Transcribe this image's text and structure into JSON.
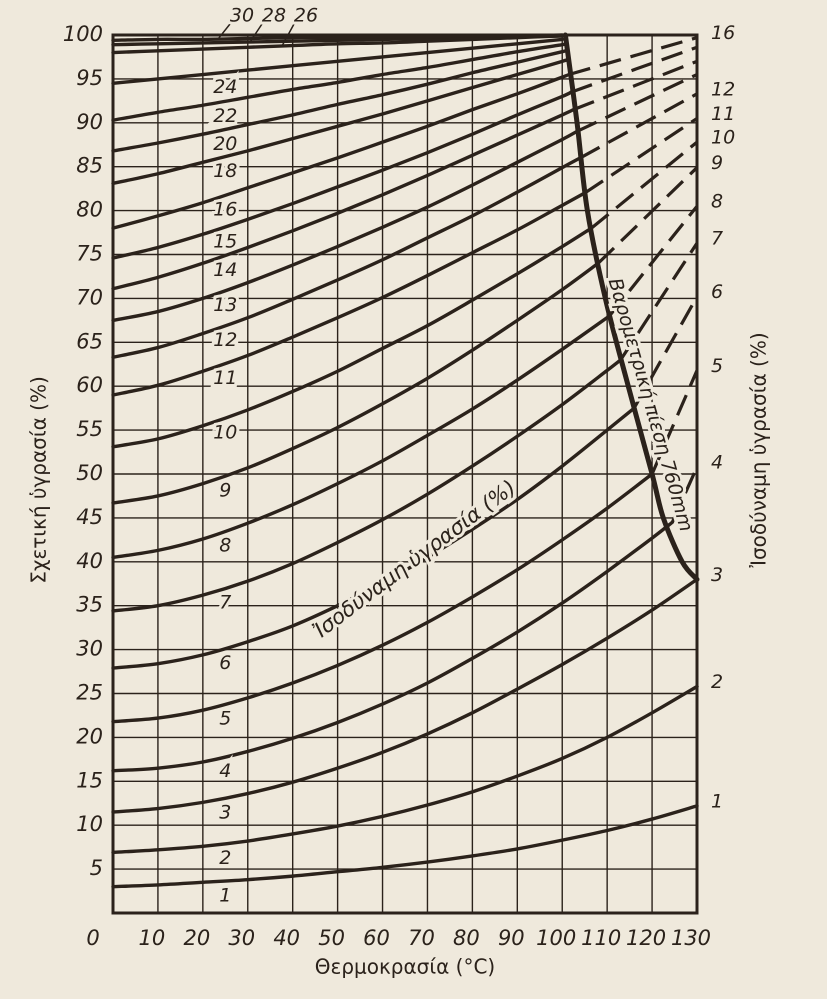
{
  "chart_data": {
    "type": "line",
    "xlabel": "Θερμοκρασία (°C)",
    "ylabel": "Σχετική ὑγρασία (%)",
    "y2label": "Ἰσοδύναμη ὑγρασία (%)",
    "annotation": "Ἰσοδύναμη ὑγρασία (%)",
    "xlim": [
      0,
      130
    ],
    "xticks": [
      0,
      10,
      20,
      30,
      40,
      50,
      60,
      70,
      80,
      90,
      100,
      110,
      120,
      130
    ],
    "ylim": [
      0,
      100
    ],
    "yticks": [
      5,
      10,
      15,
      20,
      25,
      30,
      35,
      40,
      45,
      50,
      55,
      60,
      65,
      70,
      75,
      80,
      85,
      90,
      95,
      100
    ],
    "grid": true,
    "color": "#2b221b",
    "series": [
      {
        "name": "1",
        "x": [
          0,
          10,
          20,
          30,
          40,
          50,
          60,
          70,
          80,
          90,
          100,
          110,
          120,
          130
        ],
        "values": [
          3.0,
          3.2,
          3.5,
          3.8,
          4.2,
          4.7,
          5.2,
          5.8,
          6.5,
          7.3,
          8.3,
          9.4,
          10.7,
          12.2
        ]
      },
      {
        "name": "2",
        "x": [
          0,
          10,
          20,
          30,
          40,
          50,
          60,
          70,
          80,
          90,
          100,
          110,
          120,
          130
        ],
        "values": [
          6.9,
          7.2,
          7.6,
          8.2,
          9.0,
          9.9,
          11.0,
          12.3,
          13.8,
          15.6,
          17.6,
          20.0,
          22.8,
          25.8
        ]
      },
      {
        "name": "3",
        "x": [
          0,
          10,
          20,
          30,
          40,
          50,
          60,
          70,
          80,
          90,
          100,
          110,
          120,
          130
        ],
        "values": [
          11.5,
          11.9,
          12.6,
          13.6,
          14.9,
          16.5,
          18.3,
          20.4,
          22.8,
          25.5,
          28.3,
          31.3,
          34.5,
          38.0
        ]
      },
      {
        "name": "4",
        "x": [
          0,
          10,
          20,
          30,
          40,
          50,
          60,
          70,
          80,
          90,
          100,
          110,
          120,
          124.5
        ],
        "values": [
          16.2,
          16.5,
          17.2,
          18.4,
          19.9,
          21.7,
          23.8,
          26.2,
          29.0,
          32.0,
          35.3,
          38.9,
          42.7,
          44.5
        ]
      },
      {
        "name": "5",
        "x": [
          0,
          10,
          20,
          30,
          40,
          50,
          60,
          70,
          80,
          90,
          100,
          110,
          120
        ],
        "values": [
          21.8,
          22.2,
          23.1,
          24.5,
          26.2,
          28.2,
          30.5,
          33.1,
          36.0,
          39.1,
          42.5,
          46.1,
          50.0
        ]
      },
      {
        "name": "6",
        "x": [
          0,
          10,
          20,
          30,
          40,
          50,
          60,
          70,
          80,
          90,
          100,
          110,
          116
        ],
        "values": [
          27.9,
          28.4,
          29.4,
          30.9,
          32.7,
          35.0,
          37.6,
          40.5,
          43.7,
          47.1,
          50.9,
          55.0,
          57.5
        ]
      },
      {
        "name": "7",
        "x": [
          0,
          10,
          20,
          30,
          40,
          50,
          60,
          70,
          80,
          90,
          100,
          110,
          113
        ],
        "values": [
          34.4,
          35.0,
          36.2,
          37.8,
          39.8,
          42.2,
          44.8,
          47.7,
          50.9,
          54.3,
          57.9,
          61.8,
          63.0
        ]
      },
      {
        "name": "8",
        "x": [
          0,
          10,
          20,
          30,
          40,
          50,
          60,
          70,
          80,
          90,
          100,
          110.5
        ],
        "values": [
          40.5,
          41.3,
          42.6,
          44.4,
          46.5,
          48.9,
          51.5,
          54.4,
          57.4,
          60.7,
          64.2,
          68.0
        ]
      },
      {
        "name": "9",
        "x": [
          0,
          10,
          20,
          30,
          40,
          50,
          60,
          70,
          80,
          90,
          100,
          108
        ],
        "values": [
          46.7,
          47.5,
          48.9,
          50.7,
          52.9,
          55.3,
          58.0,
          60.9,
          64.1,
          67.5,
          71.0,
          74.0
        ]
      },
      {
        "name": "10",
        "x": [
          0,
          10,
          20,
          30,
          40,
          50,
          60,
          70,
          80,
          90,
          100,
          106.5
        ],
        "values": [
          53.1,
          54.0,
          55.5,
          57.3,
          59.4,
          61.7,
          64.3,
          66.9,
          69.8,
          72.8,
          75.9,
          78.0
        ]
      },
      {
        "name": "11",
        "x": [
          0,
          10,
          20,
          30,
          40,
          50,
          60,
          70,
          80,
          90,
          100,
          105
        ],
        "values": [
          59.0,
          60.1,
          61.7,
          63.5,
          65.6,
          67.8,
          70.1,
          72.6,
          75.2,
          77.8,
          80.6,
          82.0
        ]
      },
      {
        "name": "12",
        "x": [
          0,
          10,
          20,
          30,
          40,
          50,
          60,
          70,
          80,
          90,
          100,
          104
        ],
        "values": [
          63.3,
          64.4,
          66.0,
          67.8,
          69.9,
          72.1,
          74.4,
          76.9,
          79.4,
          82.1,
          84.9,
          86.0
        ]
      },
      {
        "name": "13",
        "x": [
          0,
          10,
          20,
          30,
          40,
          50,
          60,
          70,
          80,
          90,
          100,
          103.2
        ],
        "values": [
          67.5,
          68.5,
          70.0,
          71.8,
          73.8,
          75.9,
          78.1,
          80.4,
          82.9,
          85.5,
          88.1,
          89.0
        ]
      },
      {
        "name": "14",
        "x": [
          0,
          10,
          20,
          30,
          40,
          50,
          60,
          70,
          80,
          90,
          100,
          102.5
        ],
        "values": [
          71.1,
          72.4,
          74.0,
          75.8,
          77.7,
          79.7,
          81.8,
          84.0,
          86.3,
          88.6,
          90.9,
          91.5
        ]
      },
      {
        "name": "15",
        "x": [
          0,
          10,
          20,
          30,
          40,
          50,
          60,
          70,
          80,
          90,
          100,
          102
        ],
        "values": [
          74.6,
          75.8,
          77.3,
          79.0,
          80.8,
          82.7,
          84.6,
          86.6,
          88.7,
          90.9,
          93.0,
          93.5
        ]
      },
      {
        "name": "16",
        "x": [
          0,
          10,
          20,
          30,
          40,
          50,
          60,
          70,
          80,
          90,
          100,
          101.5
        ],
        "values": [
          78.0,
          79.4,
          80.9,
          82.6,
          84.3,
          86.0,
          87.8,
          89.6,
          91.5,
          93.3,
          95.2,
          95.5
        ]
      },
      {
        "name": "18",
        "x": [
          0,
          10,
          20,
          30,
          40,
          50,
          60,
          70,
          80,
          90,
          100,
          101.2
        ],
        "values": [
          83.1,
          84.2,
          85.5,
          86.8,
          88.2,
          89.6,
          91.0,
          92.5,
          94.0,
          95.5,
          97.0,
          97.2
        ]
      },
      {
        "name": "20",
        "x": [
          0,
          10,
          20,
          30,
          40,
          50,
          60,
          70,
          80,
          90,
          100,
          101
        ],
        "values": [
          86.8,
          87.7,
          88.7,
          89.8,
          90.9,
          92.1,
          93.2,
          94.4,
          95.7,
          96.9,
          98.1,
          98.3
        ]
      },
      {
        "name": "22",
        "x": [
          0,
          10,
          20,
          30,
          40,
          50,
          60,
          70,
          80,
          90,
          100,
          100.9
        ],
        "values": [
          90.3,
          91.2,
          92.0,
          92.9,
          93.8,
          94.6,
          95.5,
          96.3,
          97.2,
          98.1,
          98.9,
          99.0
        ]
      },
      {
        "name": "24",
        "x": [
          0,
          10,
          20,
          30,
          40,
          50,
          60,
          70,
          80,
          90,
          100
        ],
        "values": [
          94.5,
          95.0,
          95.5,
          96.0,
          96.5,
          97.0,
          97.5,
          98.0,
          98.5,
          99.0,
          99.5
        ]
      },
      {
        "name": "26",
        "x": [
          0,
          10,
          20,
          30,
          40,
          50,
          60,
          70,
          80,
          90,
          100
        ],
        "values": [
          98.0,
          98.2,
          98.4,
          98.6,
          98.8,
          99.0,
          99.1,
          99.3,
          99.5,
          99.7,
          99.9
        ]
      },
      {
        "name": "28",
        "x": [
          0,
          10,
          20,
          30,
          40,
          50,
          60,
          70,
          80,
          90,
          100
        ],
        "values": [
          98.9,
          99.0,
          99.1,
          99.2,
          99.3,
          99.4,
          99.5,
          99.6,
          99.7,
          99.8,
          99.9
        ]
      },
      {
        "name": "30",
        "x": [
          0,
          10,
          20,
          30,
          40,
          50,
          60,
          70,
          80,
          90,
          100
        ],
        "values": [
          99.4,
          99.5,
          99.5,
          99.6,
          99.7,
          99.7,
          99.8,
          99.8,
          99.9,
          99.9,
          100.0
        ]
      },
      {
        "name": "4",
        "dashed": true,
        "x": [
          124.5,
          130
        ],
        "values": [
          44.5,
          50.8
        ]
      },
      {
        "name": "5",
        "dashed": true,
        "x": [
          120,
          130
        ],
        "values": [
          50.0,
          61.8
        ]
      },
      {
        "name": "6",
        "dashed": true,
        "x": [
          116,
          130
        ],
        "values": [
          57.5,
          70.2
        ]
      },
      {
        "name": "7",
        "dashed": true,
        "x": [
          113,
          130
        ],
        "values": [
          63.0,
          76.3
        ]
      },
      {
        "name": "8",
        "dashed": true,
        "x": [
          110.5,
          130
        ],
        "values": [
          68.0,
          80.5
        ]
      },
      {
        "name": "9",
        "dashed": true,
        "x": [
          108,
          130
        ],
        "values": [
          74.0,
          84.9
        ]
      },
      {
        "name": "10",
        "dashed": true,
        "x": [
          106.5,
          130
        ],
        "values": [
          78.0,
          87.8
        ]
      },
      {
        "name": "11",
        "dashed": true,
        "x": [
          105,
          130
        ],
        "values": [
          82.0,
          90.5
        ]
      },
      {
        "name": "12",
        "dashed": true,
        "x": [
          104,
          130
        ],
        "values": [
          86.0,
          93.3
        ]
      },
      {
        "dashed": true,
        "x": [
          103.2,
          130
        ],
        "values": [
          89.0,
          95.5
        ]
      },
      {
        "dashed": true,
        "x": [
          102.5,
          130
        ],
        "values": [
          91.5,
          97.0
        ]
      },
      {
        "dashed": true,
        "x": [
          102,
          130
        ],
        "values": [
          93.5,
          98.6
        ]
      },
      {
        "name": "16",
        "dashed": true,
        "x": [
          101.5,
          130
        ],
        "values": [
          95.5,
          99.7
        ]
      }
    ],
    "barometric": {
      "name": "Βαρομετρική πίεση 760mm",
      "x": [
        100.7,
        103.3,
        105.6,
        109.6,
        114.7,
        120,
        122.5,
        126.7,
        130
      ],
      "values": [
        100,
        90,
        80,
        70,
        60,
        50,
        45,
        40,
        38
      ]
    }
  }
}
